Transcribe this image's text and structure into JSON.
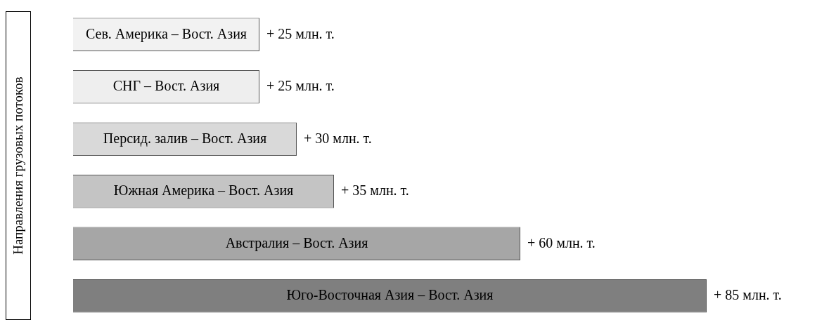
{
  "chart_data": {
    "type": "bar",
    "orientation": "horizontal",
    "ylabel": "Направления грузовых потоков",
    "categories": [
      "Сев. Америка – Вост. Азия",
      "СНГ – Вост. Азия",
      "Персид. залив – Вост. Азия",
      "Южная Америка – Вост. Азия",
      "Австралия – Вост. Азия",
      "Юго-Восточная Азия – Вост. Азия"
    ],
    "values": [
      25,
      25,
      30,
      35,
      60,
      85
    ],
    "colors": [
      "#f2f2f2",
      "#eeeeee",
      "#d9d9d9",
      "#c4c4c4",
      "#a6a6a6",
      "#7f7f7f"
    ],
    "value_labels": [
      "+ 25 млн. т.",
      "+ 25 млн. т.",
      "+ 30 млн. т.",
      "+ 35 млн. т.",
      "+ 60 млн. т.",
      "+ 85 млн. т."
    ],
    "legend": false
  }
}
